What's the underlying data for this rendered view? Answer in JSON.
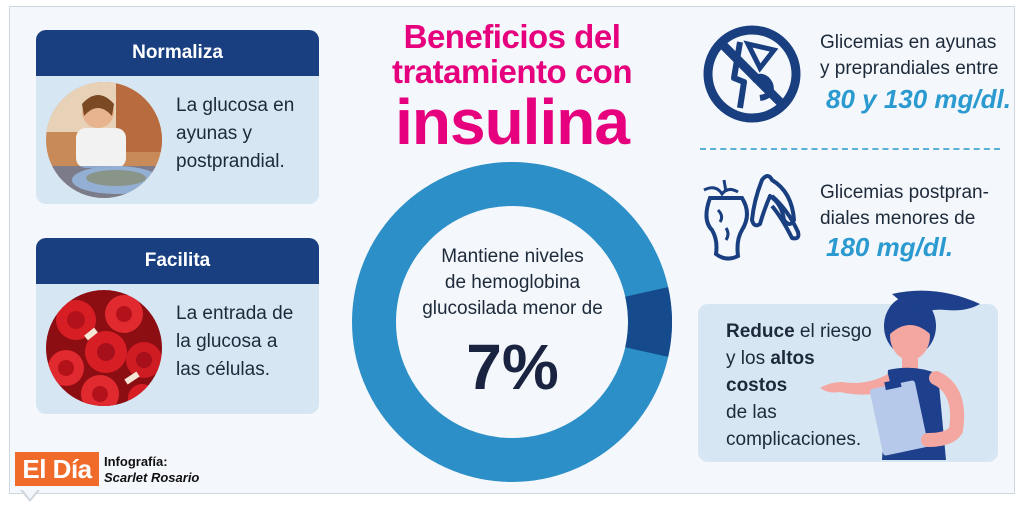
{
  "title": {
    "line1": "Beneficios del",
    "line2": "tratamiento con",
    "line3": "insulina"
  },
  "cards": [
    {
      "heading": "Normaliza",
      "text_lines": [
        "La glucosa en",
        "ayunas y",
        "postprandial."
      ],
      "image": "woman-eating-photo"
    },
    {
      "heading": "Facilita",
      "text_lines": [
        "La entrada de",
        "la glucosa a",
        "las células."
      ],
      "image": "red-blood-cells-photo"
    }
  ],
  "donut": {
    "text_lines": [
      "Mantiene niveles",
      "de hemoglobina",
      "glucosilada menor de"
    ],
    "percent_label": "7%",
    "percent_value": 7,
    "colors": {
      "main": "#2c8fc7",
      "segment": "#154b8c"
    }
  },
  "right": {
    "item1": {
      "icon": "no-sweets-icon",
      "lines": [
        "Glicemias en ayunas",
        "y preprandiales entre"
      ],
      "value": "80 y 130 mg/dl."
    },
    "item2": {
      "icon": "apple-banana-waste-icon",
      "lines": [
        "Glicemias postpran-",
        "diales menores de"
      ],
      "value": "180 mg/dl."
    },
    "reduce": {
      "b1": "Reduce",
      "t1": " el riesgo",
      "t2": "y los ",
      "b2": "altos",
      "b3": "costos",
      "t3": "de las",
      "t4": "complicaciones."
    }
  },
  "footer": {
    "logo": "El Día",
    "credit_label": "Infografía:",
    "credit_name": "Scarlet Rosario"
  },
  "colors": {
    "navy": "#193f80",
    "magenta": "#e6007e",
    "cyan": "#2a9ad0",
    "card_bg": "#d6e6f3",
    "logo_orange": "#f06a2a"
  }
}
